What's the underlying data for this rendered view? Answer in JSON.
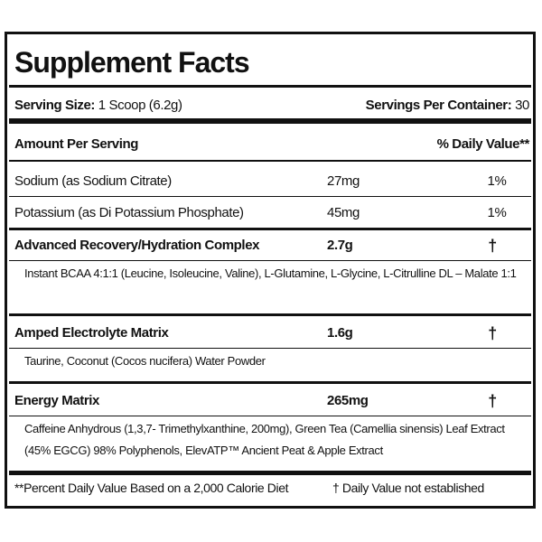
{
  "title": "Supplement Facts",
  "serving": {
    "size_label": "Serving Size:",
    "size_value": "1 Scoop (6.2g)",
    "per_label": "Servings Per Container:",
    "per_value": "30"
  },
  "header": {
    "amount": "Amount Per Serving",
    "daily_value": "% Daily Value**"
  },
  "rows": [
    {
      "name": "Sodium (as Sodium Citrate)",
      "amount": "27mg",
      "daily_value": "1%"
    },
    {
      "name": "Potassium (as Di Potassium Phosphate)",
      "amount": "45mg",
      "daily_value": "1%"
    }
  ],
  "blends": [
    {
      "name": "Advanced Recovery/Hydration Complex",
      "amount": "2.7g",
      "daily_value": "†",
      "ingredients": "Instant BCAA 4:1:1 (Leucine, Isoleucine, Valine), L-Glutamine, L-Glycine, L-Citrulline DL – Malate 1:1"
    },
    {
      "name": "Amped Electrolyte Matrix",
      "amount": "1.6g",
      "daily_value": "†",
      "ingredients": "Taurine, Coconut (Cocos nucifera) Water Powder"
    },
    {
      "name": "Energy Matrix",
      "amount": "265mg",
      "daily_value": "†",
      "ingredients": "Caffeine Anhydrous (1,3,7- Trimethylxanthine, 200mg), Green Tea (Camellia sinensis) Leaf Extract (45% EGCG) 98% Polyphenols, ElevATP™ Ancient Peat & Apple Extract"
    }
  ],
  "footnotes": {
    "percent": "**Percent Daily Value Based on a 2,000 Calorie Diet",
    "dagger": "† Daily Value not established"
  }
}
